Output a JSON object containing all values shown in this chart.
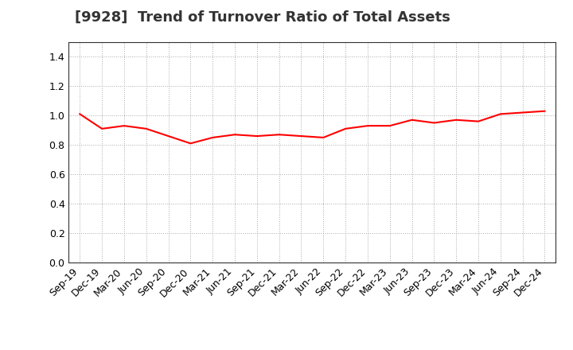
{
  "title": "[9928]  Trend of Turnover Ratio of Total Assets",
  "line_color": "#FF0000",
  "line_width": 1.5,
  "background_color": "#FFFFFF",
  "grid_color": "#AAAAAA",
  "ylim": [
    0.0,
    1.5
  ],
  "yticks": [
    0.0,
    0.2,
    0.4,
    0.6,
    0.8,
    1.0,
    1.2,
    1.4
  ],
  "x_labels": [
    "Sep-19",
    "Dec-19",
    "Mar-20",
    "Jun-20",
    "Sep-20",
    "Dec-20",
    "Mar-21",
    "Jun-21",
    "Sep-21",
    "Dec-21",
    "Mar-22",
    "Jun-22",
    "Sep-22",
    "Dec-22",
    "Mar-23",
    "Jun-23",
    "Sep-23",
    "Dec-23",
    "Mar-24",
    "Jun-24",
    "Sep-24",
    "Dec-24"
  ],
  "values": [
    1.01,
    0.91,
    0.93,
    0.91,
    0.86,
    0.81,
    0.85,
    0.87,
    0.86,
    0.87,
    0.86,
    0.85,
    0.91,
    0.93,
    0.93,
    0.97,
    0.95,
    0.97,
    0.96,
    1.01,
    1.02,
    1.03
  ],
  "title_fontsize": 13,
  "tick_fontsize": 9,
  "title_color": "#333333"
}
